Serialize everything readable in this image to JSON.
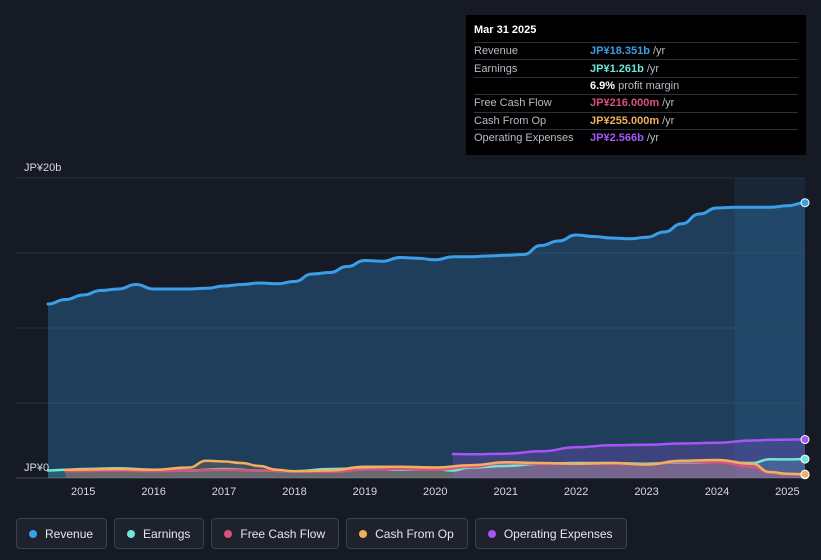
{
  "tooltip": {
    "date": "Mar 31 2025",
    "rows": [
      {
        "label": "Revenue",
        "value": "JP¥18.351b",
        "unit": "/yr",
        "color": "#3b9fe8"
      },
      {
        "label": "Earnings",
        "value": "JP¥1.261b",
        "unit": "/yr",
        "color": "#6ee6d8"
      },
      {
        "label": "",
        "value": "6.9%",
        "unit": "profit margin",
        "color": "#ffffff"
      },
      {
        "label": "Free Cash Flow",
        "value": "JP¥216.000m",
        "unit": "/yr",
        "color": "#d9527e"
      },
      {
        "label": "Cash From Op",
        "value": "JP¥255.000m",
        "unit": "/yr",
        "color": "#f0b060"
      },
      {
        "label": "Operating Expenses",
        "value": "JP¥2.566b",
        "unit": "/yr",
        "color": "#a855f7"
      }
    ]
  },
  "legend": [
    {
      "label": "Revenue",
      "color": "#3b9fe8"
    },
    {
      "label": "Earnings",
      "color": "#6ee6d8"
    },
    {
      "label": "Free Cash Flow",
      "color": "#d9527e"
    },
    {
      "label": "Cash From Op",
      "color": "#f0b060"
    },
    {
      "label": "Operating Expenses",
      "color": "#a855f7"
    }
  ],
  "chart_data": {
    "type": "area",
    "y_unit": "JP¥ billions",
    "ylim": [
      0,
      20
    ],
    "y_tick_labels": [
      {
        "value": 0,
        "label": "JP¥0"
      },
      {
        "value": 20,
        "label": "JP¥20b"
      }
    ],
    "xlim": [
      2014.5,
      2025.25
    ],
    "x_ticks": [
      2015,
      2016,
      2017,
      2018,
      2019,
      2020,
      2021,
      2022,
      2023,
      2024,
      2025
    ],
    "x_tick_labels": [
      "2015",
      "2016",
      "2017",
      "2018",
      "2019",
      "2020",
      "2021",
      "2022",
      "2023",
      "2024",
      "2025"
    ],
    "highlight_start": 2024.25,
    "grid": true,
    "series": [
      {
        "name": "Revenue",
        "color": "#3b9fe8",
        "points": [
          [
            2014.5,
            11.6
          ],
          [
            2014.75,
            11.9
          ],
          [
            2015.0,
            12.2
          ],
          [
            2015.25,
            12.5
          ],
          [
            2015.5,
            12.6
          ],
          [
            2015.75,
            12.9
          ],
          [
            2016.0,
            12.6
          ],
          [
            2016.25,
            12.6
          ],
          [
            2016.5,
            12.6
          ],
          [
            2016.75,
            12.65
          ],
          [
            2017.0,
            12.8
          ],
          [
            2017.25,
            12.9
          ],
          [
            2017.5,
            13.0
          ],
          [
            2017.75,
            12.95
          ],
          [
            2018.0,
            13.1
          ],
          [
            2018.25,
            13.6
          ],
          [
            2018.5,
            13.7
          ],
          [
            2018.75,
            14.1
          ],
          [
            2019.0,
            14.5
          ],
          [
            2019.25,
            14.45
          ],
          [
            2019.5,
            14.7
          ],
          [
            2019.75,
            14.65
          ],
          [
            2020.0,
            14.55
          ],
          [
            2020.25,
            14.75
          ],
          [
            2020.5,
            14.75
          ],
          [
            2020.75,
            14.8
          ],
          [
            2021.0,
            14.85
          ],
          [
            2021.25,
            14.9
          ],
          [
            2021.5,
            15.5
          ],
          [
            2021.75,
            15.8
          ],
          [
            2022.0,
            16.2
          ],
          [
            2022.25,
            16.1
          ],
          [
            2022.5,
            16.0
          ],
          [
            2022.75,
            15.95
          ],
          [
            2023.0,
            16.05
          ],
          [
            2023.25,
            16.4
          ],
          [
            2023.5,
            16.95
          ],
          [
            2023.75,
            17.6
          ],
          [
            2024.0,
            18.0
          ],
          [
            2024.25,
            18.05
          ],
          [
            2024.5,
            18.05
          ],
          [
            2024.75,
            18.05
          ],
          [
            2025.0,
            18.15
          ],
          [
            2025.25,
            18.351
          ]
        ]
      },
      {
        "name": "Earnings",
        "color": "#6ee6d8",
        "points": [
          [
            2014.5,
            0.5
          ],
          [
            2014.75,
            0.55
          ],
          [
            2015.0,
            0.6
          ],
          [
            2015.5,
            0.65
          ],
          [
            2016.0,
            0.55
          ],
          [
            2016.5,
            0.5
          ],
          [
            2017.0,
            0.6
          ],
          [
            2017.5,
            0.5
          ],
          [
            2018.0,
            0.45
          ],
          [
            2018.5,
            0.6
          ],
          [
            2019.0,
            0.65
          ],
          [
            2019.5,
            0.55
          ],
          [
            2020.0,
            0.6
          ],
          [
            2020.25,
            0.5
          ],
          [
            2020.5,
            0.7
          ],
          [
            2021.0,
            0.8
          ],
          [
            2021.5,
            0.95
          ],
          [
            2022.0,
            1.0
          ],
          [
            2022.5,
            1.0
          ],
          [
            2023.0,
            0.95
          ],
          [
            2023.5,
            1.05
          ],
          [
            2024.0,
            1.05
          ],
          [
            2024.5,
            1.0
          ],
          [
            2024.75,
            1.25
          ],
          [
            2025.0,
            1.24
          ],
          [
            2025.25,
            1.261
          ]
        ]
      },
      {
        "name": "Free Cash Flow",
        "color": "#d9527e",
        "points": [
          [
            2014.75,
            0.45
          ],
          [
            2015.5,
            0.5
          ],
          [
            2016.0,
            0.45
          ],
          [
            2016.5,
            0.5
          ],
          [
            2017.0,
            0.55
          ],
          [
            2017.5,
            0.5
          ],
          [
            2018.0,
            0.45
          ],
          [
            2018.5,
            0.4
          ],
          [
            2019.0,
            0.55
          ],
          [
            2019.5,
            0.6
          ],
          [
            2020.0,
            0.55
          ],
          [
            2020.5,
            0.75
          ],
          [
            2021.0,
            1.0
          ],
          [
            2021.5,
            0.95
          ],
          [
            2022.0,
            0.95
          ],
          [
            2022.5,
            0.95
          ],
          [
            2023.0,
            0.9
          ],
          [
            2023.5,
            1.1
          ],
          [
            2024.0,
            1.05
          ],
          [
            2024.5,
            0.75
          ],
          [
            2024.75,
            0.35
          ],
          [
            2025.0,
            0.25
          ],
          [
            2025.25,
            0.216
          ]
        ]
      },
      {
        "name": "Cash From Op",
        "color": "#f0b060",
        "points": [
          [
            2014.75,
            0.55
          ],
          [
            2015.5,
            0.6
          ],
          [
            2016.0,
            0.55
          ],
          [
            2016.5,
            0.7
          ],
          [
            2016.75,
            1.15
          ],
          [
            2017.0,
            1.1
          ],
          [
            2017.25,
            1.0
          ],
          [
            2017.5,
            0.8
          ],
          [
            2017.75,
            0.55
          ],
          [
            2018.0,
            0.45
          ],
          [
            2018.5,
            0.5
          ],
          [
            2019.0,
            0.75
          ],
          [
            2019.5,
            0.75
          ],
          [
            2020.0,
            0.7
          ],
          [
            2020.5,
            0.85
          ],
          [
            2021.0,
            1.05
          ],
          [
            2021.5,
            1.0
          ],
          [
            2022.0,
            0.95
          ],
          [
            2022.5,
            1.0
          ],
          [
            2023.0,
            0.9
          ],
          [
            2023.5,
            1.15
          ],
          [
            2024.0,
            1.2
          ],
          [
            2024.5,
            0.95
          ],
          [
            2024.75,
            0.4
          ],
          [
            2025.0,
            0.28
          ],
          [
            2025.25,
            0.255
          ]
        ]
      },
      {
        "name": "Operating Expenses",
        "color": "#a855f7",
        "points": [
          [
            2020.25,
            1.6
          ],
          [
            2020.5,
            1.58
          ],
          [
            2021.0,
            1.62
          ],
          [
            2021.5,
            1.78
          ],
          [
            2022.0,
            2.05
          ],
          [
            2022.5,
            2.18
          ],
          [
            2023.0,
            2.22
          ],
          [
            2023.5,
            2.3
          ],
          [
            2024.0,
            2.35
          ],
          [
            2024.5,
            2.5
          ],
          [
            2024.75,
            2.54
          ],
          [
            2025.0,
            2.56
          ],
          [
            2025.25,
            2.566
          ]
        ]
      }
    ]
  }
}
